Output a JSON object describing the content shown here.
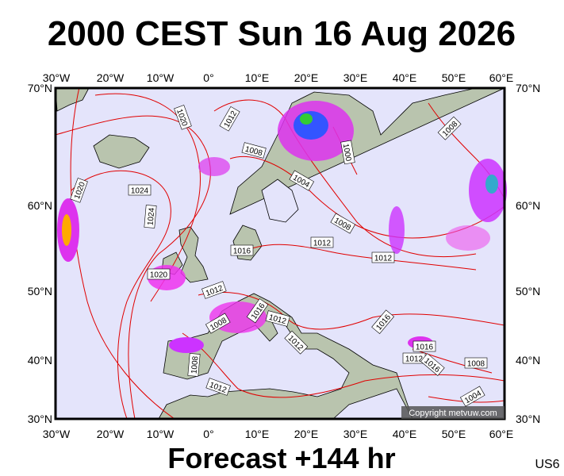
{
  "header": {
    "title": "2000 CEST Sun 16 Aug 2026"
  },
  "map": {
    "lon_labels": [
      "30°W",
      "20°W",
      "10°W",
      "0°",
      "10°E",
      "20°E",
      "30°E",
      "40°E",
      "50°E",
      "60°E"
    ],
    "lat_labels": [
      "70°N",
      "60°N",
      "50°N",
      "40°N",
      "30°N"
    ],
    "isobar_labels": [
      "1020",
      "1012",
      "1008",
      "1000",
      "1004",
      "1024",
      "1024",
      "1020",
      "1008",
      "1012",
      "1016",
      "1012",
      "1020",
      "1012",
      "1016",
      "1012",
      "1008",
      "1012",
      "1016",
      "1016",
      "1012",
      "1008",
      "1012",
      "1008",
      "1004",
      "1008",
      "1016"
    ]
  },
  "footer": {
    "copyright": "Copyright metvuw.com",
    "forecast": "Forecast +144 hr",
    "model": "US6"
  }
}
